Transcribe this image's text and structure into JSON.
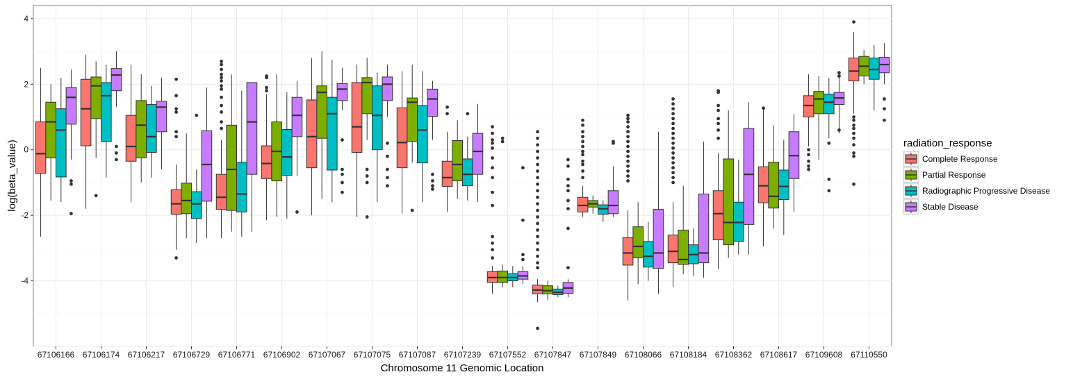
{
  "chart_data": {
    "type": "box",
    "xlabel": "Chromosome 11 Genomic Location",
    "ylabel": "log(beta_value)",
    "ylim": [
      -6.0,
      4.4
    ],
    "yticks": [
      -4,
      -2,
      0,
      2,
      4
    ],
    "grid": true,
    "legend_position": "right",
    "legend_title": "radiation_response",
    "categories": [
      "67106166",
      "67106174",
      "67106217",
      "67106729",
      "67106771",
      "67106902",
      "67107067",
      "67107075",
      "67107087",
      "67107239",
      "67107552",
      "67107847",
      "67107849",
      "67108066",
      "67108184",
      "67108362",
      "67108617",
      "67109608",
      "67110550"
    ],
    "series": [
      {
        "name": "Complete Response",
        "color": "#F8766D",
        "boxes": [
          {
            "lw": -2.65,
            "q1": -0.72,
            "med": -0.12,
            "q3": 0.85,
            "uw": 2.5,
            "out": []
          },
          {
            "lw": -1.8,
            "q1": 0.12,
            "med": 1.25,
            "q3": 2.15,
            "uw": 2.9,
            "out": []
          },
          {
            "lw": -1.6,
            "q1": -0.35,
            "med": 0.1,
            "q3": 1.05,
            "uw": 2.6,
            "out": []
          },
          {
            "lw": -3.05,
            "q1": -1.97,
            "med": -1.65,
            "q3": -1.22,
            "uw": -0.45,
            "out": [
              2.15,
              1.65,
              1.25,
              1.15,
              0.55,
              0.4,
              -3.3
            ]
          },
          {
            "lw": -2.7,
            "q1": -1.82,
            "med": -1.45,
            "q3": -0.75,
            "uw": 0.3,
            "out": [
              2.7,
              2.6,
              2.45,
              2.3,
              2.2,
              2.1,
              1.95,
              1.85,
              1.6,
              1.35,
              1.15,
              0.85,
              0.65
            ]
          },
          {
            "lw": -2.15,
            "q1": -0.88,
            "med": -0.42,
            "q3": 0.12,
            "uw": 1.7,
            "out": [
              2.25,
              2.2,
              1.9,
              1.8
            ]
          },
          {
            "lw": -2.0,
            "q1": -0.55,
            "med": 0.4,
            "q3": 1.52,
            "uw": 2.8,
            "out": []
          },
          {
            "lw": -2.05,
            "q1": -0.08,
            "med": 0.7,
            "q3": 2.05,
            "uw": 2.6,
            "out": []
          },
          {
            "lw": -1.95,
            "q1": -0.55,
            "med": 0.22,
            "q3": 1.28,
            "uw": 2.4,
            "out": []
          },
          {
            "lw": -1.9,
            "q1": -1.12,
            "med": -0.85,
            "q3": -0.35,
            "uw": 0.55,
            "out": [
              1.3,
              1.1
            ]
          },
          {
            "lw": -4.4,
            "q1": -4.05,
            "med": -3.9,
            "q3": -3.72,
            "uw": -3.55,
            "out": [
              0.7,
              0.5,
              0.3,
              0.2,
              0.05,
              -0.25,
              -0.55,
              -0.85,
              -1.3,
              -1.7,
              -2.65,
              -2.85,
              -3.05,
              -3.3
            ]
          },
          {
            "lw": -4.65,
            "q1": -4.4,
            "med": -4.28,
            "q3": -4.13,
            "uw": -3.95,
            "out": [
              0.55,
              0.35,
              0.15,
              -0.05,
              -0.25,
              -0.45,
              -0.65,
              -0.85,
              -1.05,
              -1.25,
              -1.45,
              -1.65,
              -1.85,
              -2.05,
              -2.25,
              -2.45,
              -2.65,
              -2.85,
              -3.05,
              -3.25,
              -3.45,
              -3.6,
              -5.45
            ]
          },
          {
            "lw": -2.05,
            "q1": -1.9,
            "med": -1.7,
            "q3": -1.45,
            "uw": -1.1,
            "out": [
              0.9,
              0.75,
              0.55,
              0.4,
              0.25,
              0.1,
              -0.05,
              -0.15,
              -0.35,
              -0.45,
              -0.65,
              -0.85
            ]
          },
          {
            "lw": -4.6,
            "q1": -3.52,
            "med": -3.15,
            "q3": -2.68,
            "uw": -1.85,
            "out": [
              1.05,
              0.95,
              0.85,
              0.7,
              0.55,
              0.4,
              0.25,
              0.1,
              -0.05,
              -0.2,
              -0.35,
              -0.5,
              -0.65,
              -0.8,
              -0.95
            ]
          },
          {
            "lw": -4.2,
            "q1": -3.45,
            "med": -3.1,
            "q3": -2.6,
            "uw": -1.6,
            "out": [
              1.55,
              1.4,
              1.25,
              1.1,
              0.95,
              0.8,
              0.65,
              0.5,
              0.35,
              0.2,
              0.05,
              -0.1,
              -0.25,
              -0.4,
              -0.55,
              -0.7,
              -0.85,
              -1.0
            ]
          },
          {
            "lw": -3.65,
            "q1": -2.75,
            "med": -1.95,
            "q3": -1.25,
            "uw": -0.1,
            "out": [
              1.8,
              1.75,
              1.35,
              1.2,
              0.95,
              0.8,
              0.6,
              0.35
            ]
          },
          {
            "lw": -2.95,
            "q1": -1.62,
            "med": -1.1,
            "q3": -0.52,
            "uw": 1.25,
            "out": [
              1.27
            ]
          },
          {
            "lw": 0.1,
            "q1": 1.0,
            "med": 1.35,
            "q3": 1.65,
            "uw": 2.3,
            "out": [
              -0.6,
              -0.5,
              -0.35,
              -0.15,
              0.0
            ]
          },
          {
            "lw": 1.1,
            "q1": 2.1,
            "med": 2.4,
            "q3": 2.8,
            "uw": 3.6,
            "out": [
              3.9,
              1.0,
              0.9,
              0.75,
              0.65,
              0.5,
              0.35,
              0.15,
              -0.1,
              -0.2,
              -1.05
            ]
          }
        ]
      },
      {
        "name": "Partial Response",
        "color": "#7CAE00",
        "boxes": [
          {
            "lw": -1.55,
            "q1": -0.25,
            "med": 0.85,
            "q3": 1.45,
            "uw": 2.0,
            "out": []
          },
          {
            "lw": -0.25,
            "q1": 0.95,
            "med": 1.95,
            "q3": 2.22,
            "uw": 2.7,
            "out": [
              -1.4
            ]
          },
          {
            "lw": -1.0,
            "q1": -0.25,
            "med": 0.75,
            "q3": 1.5,
            "uw": 2.3,
            "out": []
          },
          {
            "lw": -2.7,
            "q1": -1.95,
            "med": -1.55,
            "q3": -1.02,
            "uw": 0.5,
            "out": []
          },
          {
            "lw": -2.5,
            "q1": -1.85,
            "med": -0.6,
            "q3": 0.75,
            "uw": 2.3,
            "out": []
          },
          {
            "lw": -2.05,
            "q1": -0.95,
            "med": -0.05,
            "q3": 0.85,
            "uw": 2.3,
            "out": []
          },
          {
            "lw": -1.5,
            "q1": 0.35,
            "med": 1.75,
            "q3": 1.95,
            "uw": 3.0,
            "out": []
          },
          {
            "lw": 0.3,
            "q1": 1.1,
            "med": 2.05,
            "q3": 2.2,
            "uw": 2.8,
            "out": [
              -0.6,
              -0.8,
              -1.0,
              -2.05
            ]
          },
          {
            "lw": -0.4,
            "q1": 0.25,
            "med": 1.45,
            "q3": 1.58,
            "uw": 2.6,
            "out": [
              -1.85
            ]
          },
          {
            "lw": -1.5,
            "q1": -0.95,
            "med": -0.45,
            "q3": 0.28,
            "uw": 0.9,
            "out": []
          },
          {
            "lw": -4.2,
            "q1": -4.05,
            "med": -3.9,
            "q3": -3.7,
            "uw": -3.5,
            "out": [
              0.35,
              0.25
            ]
          },
          {
            "lw": -4.6,
            "q1": -4.4,
            "med": -4.3,
            "q3": -4.15,
            "uw": -4.0,
            "out": []
          },
          {
            "lw": -1.95,
            "q1": -1.75,
            "med": -1.65,
            "q3": -1.55,
            "uw": -1.4,
            "out": []
          },
          {
            "lw": -4.1,
            "q1": -3.3,
            "med": -2.95,
            "q3": -2.35,
            "uw": -1.6,
            "out": []
          },
          {
            "lw": -3.8,
            "q1": -3.5,
            "med": -3.35,
            "q3": -2.45,
            "uw": -1.1,
            "out": []
          },
          {
            "lw": -3.3,
            "q1": -2.9,
            "med": -2.22,
            "q3": -0.28,
            "uw": 1.2,
            "out": []
          },
          {
            "lw": -2.4,
            "q1": -1.78,
            "med": -1.42,
            "q3": -0.38,
            "uw": 0.75,
            "out": []
          },
          {
            "lw": -0.3,
            "q1": 1.1,
            "med": 1.55,
            "q3": 1.78,
            "uw": 2.25,
            "out": []
          },
          {
            "lw": 2.0,
            "q1": 2.25,
            "med": 2.55,
            "q3": 2.85,
            "uw": 3.05,
            "out": []
          }
        ]
      },
      {
        "name": "Radiographic Progressive Disease",
        "color": "#00BFC4",
        "boxes": [
          {
            "lw": -1.6,
            "q1": -0.83,
            "med": 0.6,
            "q3": 1.25,
            "uw": 2.2,
            "out": []
          },
          {
            "lw": -0.85,
            "q1": 0.25,
            "med": 1.65,
            "q3": 2.05,
            "uw": 2.6,
            "out": []
          },
          {
            "lw": -0.85,
            "q1": -0.08,
            "med": 0.4,
            "q3": 1.38,
            "uw": 1.95,
            "out": []
          },
          {
            "lw": -2.85,
            "q1": -2.1,
            "med": -1.65,
            "q3": -1.28,
            "uw": -0.6,
            "out": [
              1.05
            ]
          },
          {
            "lw": -2.65,
            "q1": -1.9,
            "med": -1.35,
            "q3": -0.38,
            "uw": 1.8,
            "out": []
          },
          {
            "lw": -2.1,
            "q1": -0.78,
            "med": -0.22,
            "q3": 0.62,
            "uw": 1.75,
            "out": []
          },
          {
            "lw": -1.6,
            "q1": -0.62,
            "med": 1.1,
            "q3": 1.6,
            "uw": 2.75,
            "out": []
          },
          {
            "lw": -1.6,
            "q1": 0.0,
            "med": 1.05,
            "q3": 1.95,
            "uw": 2.35,
            "out": []
          },
          {
            "lw": -1.6,
            "q1": -0.4,
            "med": 0.6,
            "q3": 1.35,
            "uw": 2.4,
            "out": []
          },
          {
            "lw": -1.55,
            "q1": -1.1,
            "med": -0.75,
            "q3": -0.28,
            "uw": 0.4,
            "out": [
              1.1
            ]
          },
          {
            "lw": -4.2,
            "q1": -4.0,
            "med": -3.9,
            "q3": -3.78,
            "uw": -3.55,
            "out": []
          },
          {
            "lw": -4.5,
            "q1": -4.42,
            "med": -4.35,
            "q3": -4.25,
            "uw": -4.15,
            "out": []
          },
          {
            "lw": -2.2,
            "q1": -1.97,
            "med": -1.8,
            "q3": -1.68,
            "uw": -1.55,
            "out": []
          },
          {
            "lw": -4.0,
            "q1": -3.58,
            "med": -3.25,
            "q3": -2.8,
            "uw": -2.2,
            "out": []
          },
          {
            "lw": -3.85,
            "q1": -3.48,
            "med": -3.2,
            "q3": -2.9,
            "uw": -2.4,
            "out": []
          },
          {
            "lw": -3.2,
            "q1": -2.8,
            "med": -2.22,
            "q3": -1.6,
            "uw": -0.3,
            "out": []
          },
          {
            "lw": -2.6,
            "q1": -1.52,
            "med": -1.12,
            "q3": -0.62,
            "uw": 0.3,
            "out": []
          },
          {
            "lw": 0.35,
            "q1": 1.1,
            "med": 1.45,
            "q3": 1.7,
            "uw": 2.2,
            "out": [
              0.2,
              -0.9,
              -1.25
            ]
          },
          {
            "lw": 1.2,
            "q1": 2.15,
            "med": 2.45,
            "q3": 2.8,
            "uw": 3.2,
            "out": []
          }
        ]
      },
      {
        "name": "Stable Disease",
        "color": "#C77CFF",
        "boxes": [
          {
            "lw": -0.3,
            "q1": 0.78,
            "med": 1.6,
            "q3": 1.9,
            "uw": 2.45,
            "out": [
              -0.95,
              -1.05,
              -1.95
            ]
          },
          {
            "lw": 1.3,
            "q1": 1.8,
            "med": 2.28,
            "q3": 2.48,
            "uw": 3.0,
            "out": [
              0.1,
              -0.1,
              -0.3
            ]
          },
          {
            "lw": -0.6,
            "q1": 0.55,
            "med": 1.3,
            "q3": 1.48,
            "uw": 2.2,
            "out": []
          },
          {
            "lw": -2.7,
            "q1": -1.57,
            "med": -0.45,
            "q3": 0.58,
            "uw": 1.9,
            "out": []
          },
          {
            "lw": -2.5,
            "q1": -0.75,
            "med": 0.85,
            "q3": 2.05,
            "uw": 2.05,
            "out": []
          },
          {
            "lw": -0.8,
            "q1": 0.4,
            "med": 1.05,
            "q3": 1.6,
            "uw": 2.1,
            "out": [
              -1.9
            ]
          },
          {
            "lw": 1.2,
            "q1": 1.5,
            "med": 1.85,
            "q3": 2.02,
            "uw": 2.5,
            "out": [
              0.3,
              -0.6,
              -0.75,
              -1.0,
              -1.3
            ]
          },
          {
            "lw": 1.0,
            "q1": 1.5,
            "med": 2.0,
            "q3": 2.22,
            "uw": 2.6,
            "out": [
              0.2,
              -0.2,
              -0.6,
              -0.85,
              -1.1
            ]
          },
          {
            "lw": 0.3,
            "q1": 1.02,
            "med": 1.55,
            "q3": 1.85,
            "uw": 2.1,
            "out": [
              -0.75,
              -0.95,
              -1.1,
              -1.2
            ]
          },
          {
            "lw": -1.6,
            "q1": -0.75,
            "med": -0.05,
            "q3": 0.5,
            "uw": 1.4,
            "out": []
          },
          {
            "lw": -4.1,
            "q1": -3.95,
            "med": -3.85,
            "q3": -3.72,
            "uw": -3.55,
            "out": [
              -0.55,
              -2.15,
              -3.2,
              -3.35
            ]
          },
          {
            "lw": -4.5,
            "q1": -4.38,
            "med": -4.22,
            "q3": -4.05,
            "uw": -3.95,
            "out": [
              -0.3,
              -0.5,
              -0.9,
              -1.1,
              -1.25,
              -1.55,
              -1.8,
              -2.4,
              -3.6
            ]
          },
          {
            "lw": -2.05,
            "q1": -1.95,
            "med": -1.7,
            "q3": -1.25,
            "uw": -0.5,
            "out": [
              0.25,
              0.2
            ]
          },
          {
            "lw": -4.4,
            "q1": -3.62,
            "med": -3.15,
            "q3": -1.82,
            "uw": 0.55,
            "out": []
          },
          {
            "lw": -3.9,
            "q1": -3.45,
            "med": -3.15,
            "q3": -1.35,
            "uw": 0.25,
            "out": []
          },
          {
            "lw": -3.2,
            "q1": -2.28,
            "med": -0.75,
            "q3": 0.65,
            "uw": 1.45,
            "out": []
          },
          {
            "lw": -1.9,
            "q1": -0.88,
            "med": -0.18,
            "q3": 0.55,
            "uw": 1.1,
            "out": []
          },
          {
            "lw": 0.5,
            "q1": 1.38,
            "med": 1.58,
            "q3": 1.75,
            "uw": 2.2,
            "out": [
              2.35,
              2.25,
              0.6
            ]
          },
          {
            "lw": 2.0,
            "q1": 2.35,
            "med": 2.6,
            "q3": 2.82,
            "uw": 3.25,
            "out": [
              1.55,
              1.25,
              0.9
            ]
          }
        ]
      }
    ]
  }
}
